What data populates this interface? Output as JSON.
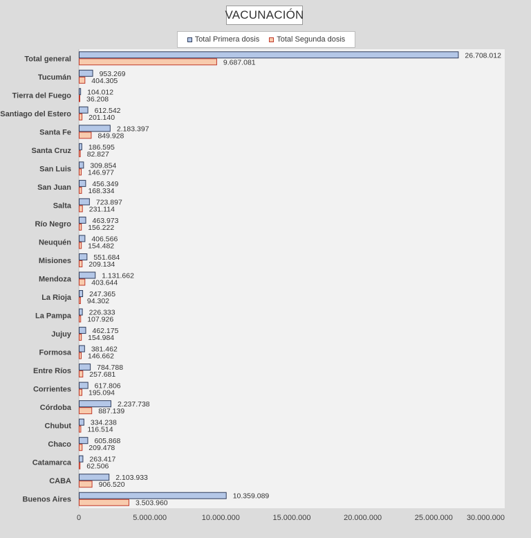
{
  "chart_data": {
    "type": "bar",
    "orientation": "horizontal",
    "title": "VACUNACIÓN",
    "categories": [
      "Total general",
      "Tucumán",
      "Tierra del Fuego",
      "Santiago del Estero",
      "Santa Fe",
      "Santa Cruz",
      "San Luis",
      "San Juan",
      "Salta",
      "Río Negro",
      "Neuquén",
      "Misiones",
      "Mendoza",
      "La Rioja",
      "La Pampa",
      "Jujuy",
      "Formosa",
      "Entre Ríos",
      "Corrientes",
      "Córdoba",
      "Chubut",
      "Chaco",
      "Catamarca",
      "CABA",
      "Buenos Aires"
    ],
    "series": [
      {
        "name": "Total Primera dosis",
        "color": "#b4c7e7",
        "border": "#2f3d5c",
        "values": [
          26708012,
          953269,
          104012,
          612542,
          2183397,
          186595,
          309854,
          456349,
          723897,
          463973,
          406566,
          551684,
          1131662,
          247365,
          226333,
          462175,
          381462,
          784788,
          617806,
          2237738,
          334238,
          605868,
          263417,
          2103933,
          10359089
        ],
        "labels": [
          "26.708.012",
          "953.269",
          "104.012",
          "612.542",
          "2.183.397",
          "186.595",
          "309.854",
          "456.349",
          "723.897",
          "463.973",
          "406.566",
          "551.684",
          "1.131.662",
          "247.365",
          "226.333",
          "462.175",
          "381.462",
          "784.788",
          "617.806",
          "2.237.738",
          "334.238",
          "605.868",
          "263.417",
          "2.103.933",
          "10.359.089"
        ]
      },
      {
        "name": "Total Segunda dosis",
        "color": "#f8cbad",
        "border": "#c0392b",
        "values": [
          9687081,
          404305,
          36208,
          201140,
          849928,
          82827,
          146977,
          168334,
          231114,
          156222,
          154482,
          209134,
          403644,
          94302,
          107926,
          154984,
          146662,
          257681,
          195094,
          887139,
          116514,
          209478,
          62506,
          906520,
          3503960
        ],
        "labels": [
          "9.687.081",
          "404.305",
          "36.208",
          "201.140",
          "849.928",
          "82.827",
          "146.977",
          "168.334",
          "231.114",
          "156.222",
          "154.482",
          "209.134",
          "403.644",
          "94.302",
          "107.926",
          "154.984",
          "146.662",
          "257.681",
          "195.094",
          "887.139",
          "116.514",
          "209.478",
          "62.506",
          "906.520",
          "3.503.960"
        ]
      }
    ],
    "xlim": [
      0,
      30000000
    ],
    "x_ticks": [
      0,
      5000000,
      10000000,
      15000000,
      20000000,
      25000000,
      30000000
    ],
    "x_tick_labels": [
      "0",
      "5.000.000",
      "10.000.000",
      "15.000.000",
      "20.000.000",
      "25.000.000",
      "30.000.000"
    ],
    "grid": false,
    "legend_position": "top"
  }
}
